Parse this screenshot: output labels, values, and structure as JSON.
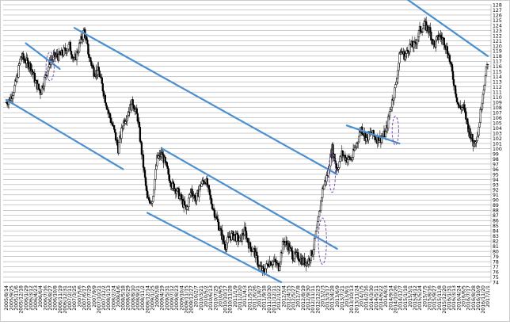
{
  "chart_data": {
    "type": "candlestick",
    "y_ticks": [
      74,
      75,
      76,
      77,
      78,
      79,
      80,
      81,
      82,
      83,
      84,
      85,
      86,
      87,
      88,
      89,
      90,
      91,
      92,
      93,
      94,
      95,
      96,
      97,
      98,
      99,
      100,
      101,
      102,
      103,
      104,
      105,
      106,
      107,
      108,
      109,
      110,
      111,
      112,
      113,
      114,
      115,
      116,
      117,
      118,
      119,
      120,
      121,
      122,
      123,
      124,
      125,
      126,
      127,
      128
    ],
    "ylim": [
      74,
      128
    ],
    "x_tick_labels": [
      "2005/8/14",
      "2005/9/25",
      "2005/11/6",
      "2005/12/18",
      "2006/1/29",
      "2006/3/12",
      "2006/4/23",
      "2006/6/4",
      "2006/7/16",
      "2006/8/27",
      "2006/10/8",
      "2006/11/19",
      "2006/12/31",
      "2007/2/11",
      "2007/3/25",
      "2007/5/6",
      "2007/6/17",
      "2007/7/29",
      "2007/9/9",
      "2007/10/21",
      "2007/12/2",
      "2008/1/13",
      "2008/2/24",
      "2008/4/6",
      "2008/5/18",
      "2008/6/29",
      "2008/8/10",
      "2008/9/21",
      "2008/11/2",
      "2008/12/14",
      "2009/1/25",
      "2009/3/8",
      "2009/4/19",
      "2009/5/31",
      "2009/7/12",
      "2009/8/23",
      "2009/10/4",
      "2009/11/15",
      "2009/12/27",
      "2010/2/7",
      "2010/3/21",
      "2010/5/2",
      "2010/6/13",
      "2010/7/25",
      "2010/9/5",
      "2010/10/17",
      "2010/11/28",
      "2011/1/9",
      "2011/2/20",
      "2011/4/3",
      "2011/5/15",
      "2011/6/26",
      "2011/8/7",
      "2011/9/18",
      "2011/10/30",
      "2011/12/11",
      "2012/1/22",
      "2012/3/4",
      "2012/4/15",
      "2012/5/27",
      "2012/7/8",
      "2012/8/19",
      "2012/9/30",
      "2012/11/11",
      "2012/12/23",
      "2013/2/3",
      "2013/3/17",
      "2013/4/28",
      "2013/6/9",
      "2013/7/21",
      "2013/9/1",
      "2013/10/13",
      "2013/11/24",
      "2014/1/5",
      "2014/2/16",
      "2014/3/30",
      "2014/5/11",
      "2014/6/22",
      "2014/8/3",
      "2014/9/14",
      "2014/10/26",
      "2014/12/7",
      "2015/1/18",
      "2015/3/1",
      "2015/4/12",
      "2015/5/24",
      "2015/7/5",
      "2015/8/16",
      "2015/9/27",
      "2015/11/8",
      "2015/12/20",
      "2016/1/31",
      "2016/3/13",
      "2016/4/24",
      "2016/6/5",
      "2016/7/17",
      "2016/8/28",
      "2016/10/9",
      "2016/11/20",
      "2017/1/1"
    ],
    "price_path": [
      [
        "2005/8/14",
        109
      ],
      [
        "2005/9/25",
        110
      ],
      [
        "2005/11/6",
        113
      ],
      [
        "2005/12/18",
        118
      ],
      [
        "2006/1/29",
        117
      ],
      [
        "2006/3/12",
        116
      ],
      [
        "2006/4/23",
        113
      ],
      [
        "2006/6/4",
        111
      ],
      [
        "2006/7/16",
        114
      ],
      [
        "2006/8/27",
        117
      ],
      [
        "2006/10/8",
        118
      ],
      [
        "2006/11/19",
        118
      ],
      [
        "2006/12/31",
        119
      ],
      [
        "2007/2/11",
        120
      ],
      [
        "2007/3/25",
        117
      ],
      [
        "2007/5/6",
        120
      ],
      [
        "2007/6/17",
        123
      ],
      [
        "2007/7/29",
        118
      ],
      [
        "2007/9/9",
        115
      ],
      [
        "2007/10/21",
        115
      ],
      [
        "2007/12/2",
        111
      ],
      [
        "2008/1/13",
        107
      ],
      [
        "2008/2/24",
        104
      ],
      [
        "2008/4/6",
        100
      ],
      [
        "2008/5/18",
        105
      ],
      [
        "2008/6/29",
        107
      ],
      [
        "2008/8/10",
        109
      ],
      [
        "2008/9/21",
        106
      ],
      [
        "2008/11/2",
        98
      ],
      [
        "2008/12/14",
        90
      ],
      [
        "2009/1/25",
        90
      ],
      [
        "2009/3/8",
        98
      ],
      [
        "2009/4/19",
        99
      ],
      [
        "2009/5/31",
        96
      ],
      [
        "2009/7/12",
        93
      ],
      [
        "2009/8/23",
        92
      ],
      [
        "2009/10/4",
        90
      ],
      [
        "2009/11/15",
        88
      ],
      [
        "2009/12/27",
        92
      ],
      [
        "2010/2/7",
        90
      ],
      [
        "2010/3/21",
        93
      ],
      [
        "2010/5/2",
        94
      ],
      [
        "2010/6/13",
        90
      ],
      [
        "2010/7/25",
        87
      ],
      [
        "2010/9/5",
        84
      ],
      [
        "2010/10/17",
        81
      ],
      [
        "2010/11/28",
        83
      ],
      [
        "2011/1/9",
        83
      ],
      [
        "2011/2/20",
        82
      ],
      [
        "2011/4/3",
        84
      ],
      [
        "2011/5/15",
        81
      ],
      [
        "2011/6/26",
        80
      ],
      [
        "2011/8/7",
        77
      ],
      [
        "2011/9/18",
        76
      ],
      [
        "2011/10/30",
        78
      ],
      [
        "2011/12/11",
        78
      ],
      [
        "2012/1/22",
        77
      ],
      [
        "2012/3/4",
        82
      ],
      [
        "2012/4/15",
        81
      ],
      [
        "2012/5/27",
        79
      ],
      [
        "2012/7/8",
        79
      ],
      [
        "2012/8/19",
        78
      ],
      [
        "2012/9/30",
        78
      ],
      [
        "2012/11/11",
        80
      ],
      [
        "2012/12/23",
        85
      ],
      [
        "2013/2/3",
        92
      ],
      [
        "2013/3/17",
        95
      ],
      [
        "2013/4/28",
        100
      ],
      [
        "2013/6/9",
        96
      ],
      [
        "2013/7/21",
        99
      ],
      [
        "2013/9/1",
        98
      ],
      [
        "2013/10/13",
        98
      ],
      [
        "2013/11/24",
        101
      ],
      [
        "2014/1/5",
        104
      ],
      [
        "2014/2/16",
        102
      ],
      [
        "2014/3/30",
        103
      ],
      [
        "2014/5/11",
        102
      ],
      [
        "2014/6/22",
        102
      ],
      [
        "2014/8/3",
        103
      ],
      [
        "2014/9/14",
        108
      ],
      [
        "2014/10/26",
        112
      ],
      [
        "2014/12/7",
        119
      ],
      [
        "2015/1/18",
        118
      ],
      [
        "2015/3/1",
        120
      ],
      [
        "2015/4/12",
        120
      ],
      [
        "2015/5/24",
        123
      ],
      [
        "2015/7/5",
        124
      ],
      [
        "2015/8/16",
        123
      ],
      [
        "2015/9/27",
        120
      ],
      [
        "2015/11/8",
        122
      ],
      [
        "2015/12/20",
        121
      ],
      [
        "2016/1/31",
        118
      ],
      [
        "2016/3/13",
        113
      ],
      [
        "2016/4/24",
        108
      ],
      [
        "2016/6/5",
        108
      ],
      [
        "2016/7/17",
        104
      ],
      [
        "2016/8/28",
        101
      ],
      [
        "2016/10/9",
        103
      ],
      [
        "2016/11/20",
        111
      ],
      [
        "2017/1/1",
        117
      ]
    ],
    "trend_lines": [
      {
        "from": [
          "2005/8/14",
          109.5
        ],
        "to": [
          "2008/5/18",
          96
        ]
      },
      {
        "from": [
          "2006/1/29",
          120.5
        ],
        "to": [
          "2006/11/19",
          115.5
        ]
      },
      {
        "from": [
          "2007/3/25",
          123.5
        ],
        "to": [
          "2013/6/9",
          95
        ]
      },
      {
        "from": [
          "2009/4/19",
          100
        ],
        "to": [
          "2013/6/9",
          80.5
        ]
      },
      {
        "from": [
          "2008/12/14",
          87.5
        ],
        "to": [
          "2012/2/12",
          74
        ]
      },
      {
        "from": [
          "2013/9/1",
          104.5
        ],
        "to": [
          "2014/11/30",
          101
        ]
      },
      {
        "from": [
          "2014/12/7",
          130
        ],
        "to": [
          "2017/1/1",
          118
        ]
      }
    ],
    "highlight_ellipses": [
      {
        "center": [
          "2006/8/27",
          116
        ],
        "rx_weeks": 5,
        "ry": 2.8
      },
      {
        "center": [
          "2013/2/3",
          82
        ],
        "rx_weeks": 5,
        "ry": 4.5
      },
      {
        "center": [
          "2013/4/28",
          95.5
        ],
        "rx_weeks": 4,
        "ry": 4
      },
      {
        "center": [
          "2014/10/26",
          103.5
        ],
        "rx_weeks": 4,
        "ry": 2.8
      }
    ],
    "colors": {
      "price": "#000000",
      "trend": "#4a90d0",
      "ellipse": "#7b4fb3",
      "grid": "#999999"
    }
  }
}
